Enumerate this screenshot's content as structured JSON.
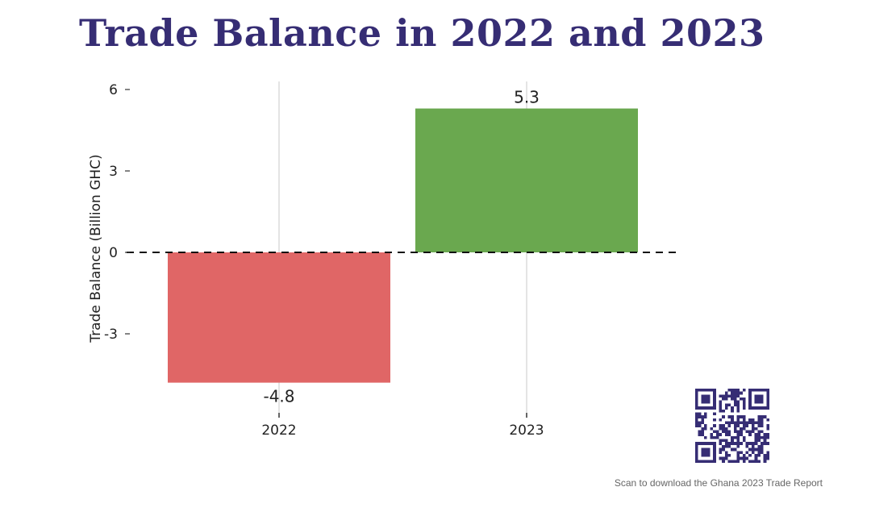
{
  "chart_data": {
    "type": "bar",
    "title": "Trade Balance in 2022 and 2023",
    "xlabel": "",
    "ylabel": "Trade Balance (Billion GHC)",
    "categories": [
      "2022",
      "2023"
    ],
    "values": [
      -4.8,
      5.3
    ],
    "data_labels": [
      "-4.8",
      "5.3"
    ],
    "yticks": [
      6,
      3,
      0,
      -3
    ],
    "ytick_labels": [
      "6",
      "3",
      "0",
      "-3"
    ],
    "ylim": [
      -5.9,
      6.3
    ],
    "reference_line": {
      "y": 0,
      "style": "dashed"
    },
    "grid": "vertical lines at categories",
    "legend": "none"
  },
  "colors": {
    "title": "#362d74",
    "negative_bar": "#e06666",
    "positive_bar": "#6aa84f",
    "qr": "#362d74"
  },
  "caption": "Scan to download the Ghana 2023 Trade Report",
  "icons": [
    "qr-code-icon"
  ]
}
